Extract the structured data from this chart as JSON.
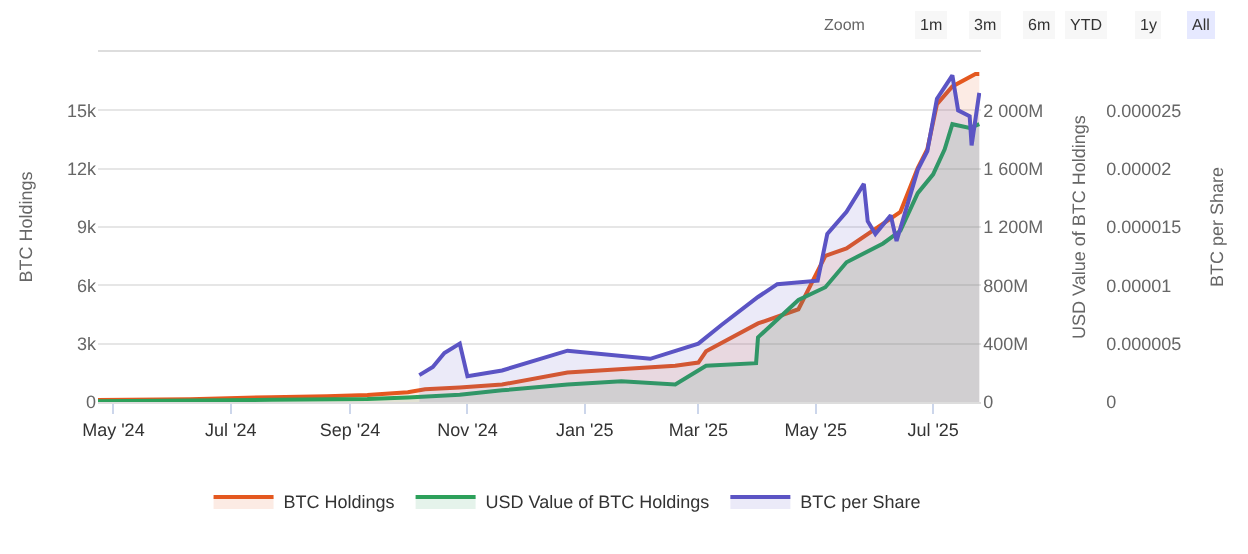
{
  "chart_data": {
    "type": "area",
    "xlim": [
      "2024-04-23",
      "2025-07-26"
    ],
    "xticks": [
      {
        "value": "2024-05-01",
        "label": "May '24"
      },
      {
        "value": "2024-07-01",
        "label": "Jul '24"
      },
      {
        "value": "2024-09-01",
        "label": "Sep '24"
      },
      {
        "value": "2024-11-01",
        "label": "Nov '24"
      },
      {
        "value": "2025-01-01",
        "label": "Jan '25"
      },
      {
        "value": "2025-03-01",
        "label": "Mar '25"
      },
      {
        "value": "2025-05-01",
        "label": "May '25"
      },
      {
        "value": "2025-07-01",
        "label": "Jul '25"
      }
    ],
    "ylabel": "BTC Holdings",
    "ylim": [
      0,
      18000
    ],
    "yticks": [
      0,
      {
        "value": 3000,
        "label": "3k"
      },
      {
        "value": 6000,
        "label": "6k"
      },
      {
        "value": 9000,
        "label": "9k"
      },
      {
        "value": 12000,
        "label": "12k"
      },
      {
        "value": 15000,
        "label": "15k"
      },
      {
        "value": 18000,
        "label": null
      }
    ],
    "y2label": "USD Value of BTC Holdings",
    "y2lim": [
      0,
      2400
    ],
    "y2ticks": [
      0,
      {
        "value": 400,
        "label": "400M"
      },
      {
        "value": 800,
        "label": "800M"
      },
      {
        "value": 1200,
        "label": "1 200M"
      },
      {
        "value": 1600,
        "label": "1 600M"
      },
      {
        "value": 2000,
        "label": "2 000M"
      },
      {
        "value": 2400,
        "label": null
      }
    ],
    "y3label": "BTC per Share",
    "y3lim": [
      0,
      3e-05
    ],
    "y3ticks": [
      0,
      {
        "value": 5e-06,
        "label": "0.000005"
      },
      {
        "value": 1e-05,
        "label": "0.00001"
      },
      {
        "value": 1.5e-05,
        "label": "0.000015"
      },
      {
        "value": 2e-05,
        "label": "0.00002"
      },
      {
        "value": 2.5e-05,
        "label": "0.000025"
      },
      {
        "value": 3e-05,
        "label": null
      }
    ],
    "grid": "y",
    "legend": "bottom",
    "annotations": [
      "Zoom",
      "1m",
      "3m",
      "6m",
      "YTD",
      "1y",
      "All"
    ],
    "series": [
      {
        "name": "BTC per Share",
        "color": "#5b54c4",
        "axis": "y3",
        "x": [
          "2024-10-07",
          "2024-10-14",
          "2024-10-20",
          "2024-10-28",
          "2024-11-01",
          "2024-11-19",
          "2024-12-23",
          "2025-02-04",
          "2025-03-01",
          "2025-03-13",
          "2025-04-01",
          "2025-04-11",
          "2025-05-02",
          "2025-05-07",
          "2025-05-17",
          "2025-05-26",
          "2025-05-28",
          "2025-06-01",
          "2025-06-09",
          "2025-06-12",
          "2025-06-16",
          "2025-06-23",
          "2025-06-28",
          "2025-07-03",
          "2025-07-11",
          "2025-07-14",
          "2025-07-20",
          "2025-07-21",
          "2025-07-25"
        ],
        "values": [
          2.3e-06,
          3e-06,
          4.2e-06,
          5e-06,
          2.2e-06,
          2.7e-06,
          4.4e-06,
          3.7e-06,
          5e-06,
          6.6e-06,
          9e-06,
          1.01e-05,
          1.04e-05,
          1.44e-05,
          1.63e-05,
          1.87e-05,
          1.55e-05,
          1.44e-05,
          1.6e-05,
          1.38e-05,
          1.6e-05,
          1.99e-05,
          2.15e-05,
          2.6e-05,
          2.8e-05,
          2.5e-05,
          2.45e-05,
          2.2e-05,
          2.65e-05
        ]
      },
      {
        "name": "BTC Holdings",
        "color": "#e4581f",
        "axis": "y",
        "x": [
          "2024-04-23",
          "2024-06-10",
          "2024-07-22",
          "2024-08-20",
          "2024-09-10",
          "2024-10-01",
          "2024-10-10",
          "2024-10-28",
          "2024-11-19",
          "2024-12-23",
          "2025-02-17",
          "2025-03-01",
          "2025-03-05",
          "2025-04-01",
          "2025-04-22",
          "2025-05-06",
          "2025-05-17",
          "2025-06-14",
          "2025-06-23",
          "2025-06-28",
          "2025-07-03",
          "2025-07-11",
          "2025-07-23",
          "2025-07-25"
        ],
        "values": [
          100,
          140,
          250,
          300,
          360,
          500,
          650,
          750,
          900,
          1520,
          1870,
          2030,
          2610,
          4040,
          4770,
          7520,
          7900,
          9780,
          12030,
          13000,
          15320,
          16230,
          16870,
          16870
        ]
      },
      {
        "name": "USD Value of BTC Holdings",
        "color": "#2ca05a",
        "axis": "y2",
        "x": [
          "2024-04-23",
          "2024-07-22",
          "2024-09-10",
          "2024-10-01",
          "2024-10-28",
          "2024-11-19",
          "2024-12-23",
          "2025-01-20",
          "2025-02-17",
          "2025-03-05",
          "2025-03-31",
          "2025-04-01",
          "2025-04-22",
          "2025-05-06",
          "2025-05-17",
          "2025-06-05",
          "2025-06-14",
          "2025-06-23",
          "2025-07-01",
          "2025-07-07",
          "2025-07-11",
          "2025-07-20",
          "2025-07-25"
        ],
        "values": [
          5,
          15,
          20,
          30,
          50,
          80,
          120,
          142,
          120,
          249,
          266,
          443,
          700,
          787,
          958,
          1087,
          1174,
          1432,
          1561,
          1733,
          1905,
          1880,
          1905
        ]
      }
    ]
  }
}
